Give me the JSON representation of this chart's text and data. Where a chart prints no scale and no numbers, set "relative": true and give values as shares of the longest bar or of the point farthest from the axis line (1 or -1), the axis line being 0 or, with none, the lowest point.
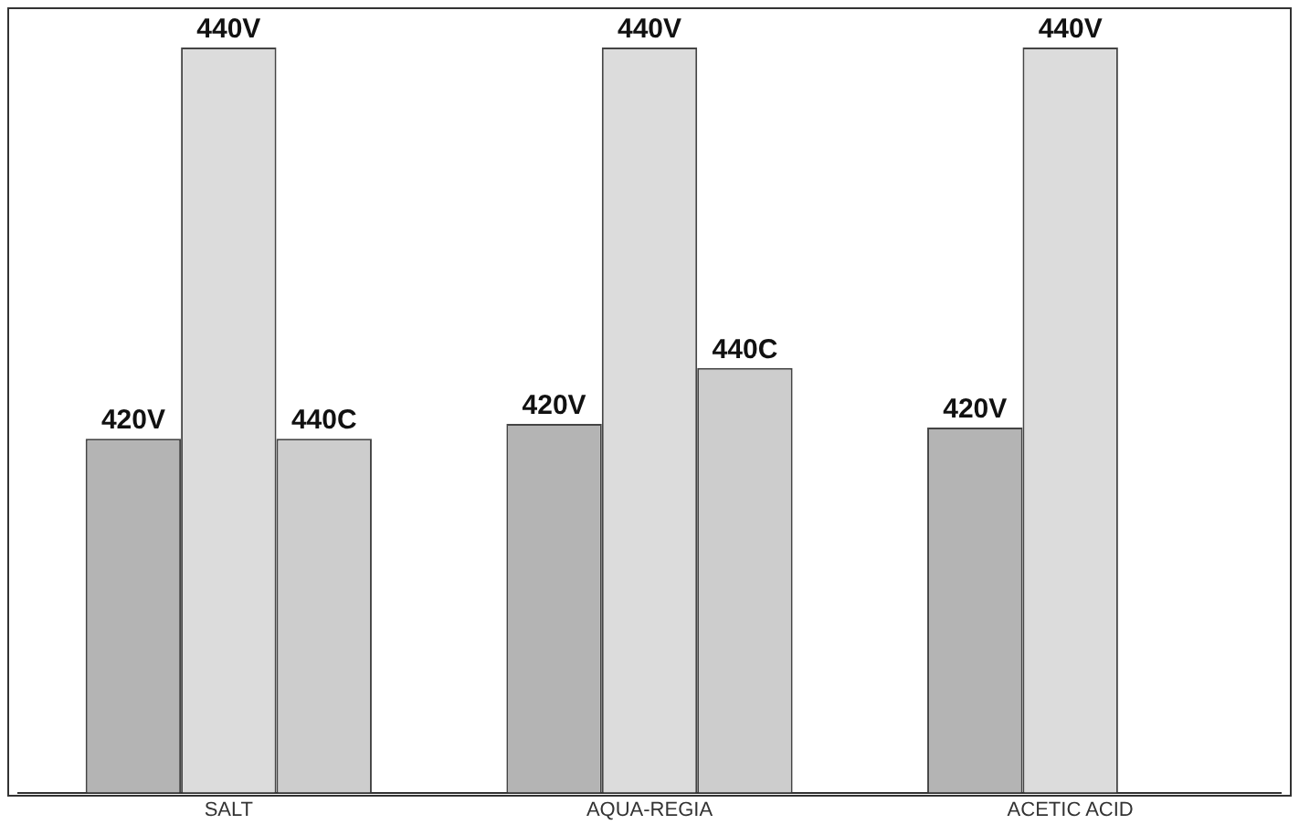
{
  "chart_data": {
    "type": "bar",
    "relative": true,
    "categories": [
      "SALT",
      "AQUA-REGIA",
      "ACETIC ACID"
    ],
    "series": [
      {
        "name": "420V",
        "color": "#b4b4b4",
        "values": [
          0.475,
          0.495,
          0.49
        ]
      },
      {
        "name": "440V",
        "color": "#dcdcdc",
        "values": [
          1,
          1,
          1
        ]
      },
      {
        "name": "440C",
        "color": "#cdcdcd",
        "values": [
          0.475,
          0.57,
          null
        ]
      }
    ],
    "legend": false,
    "grid": false
  }
}
